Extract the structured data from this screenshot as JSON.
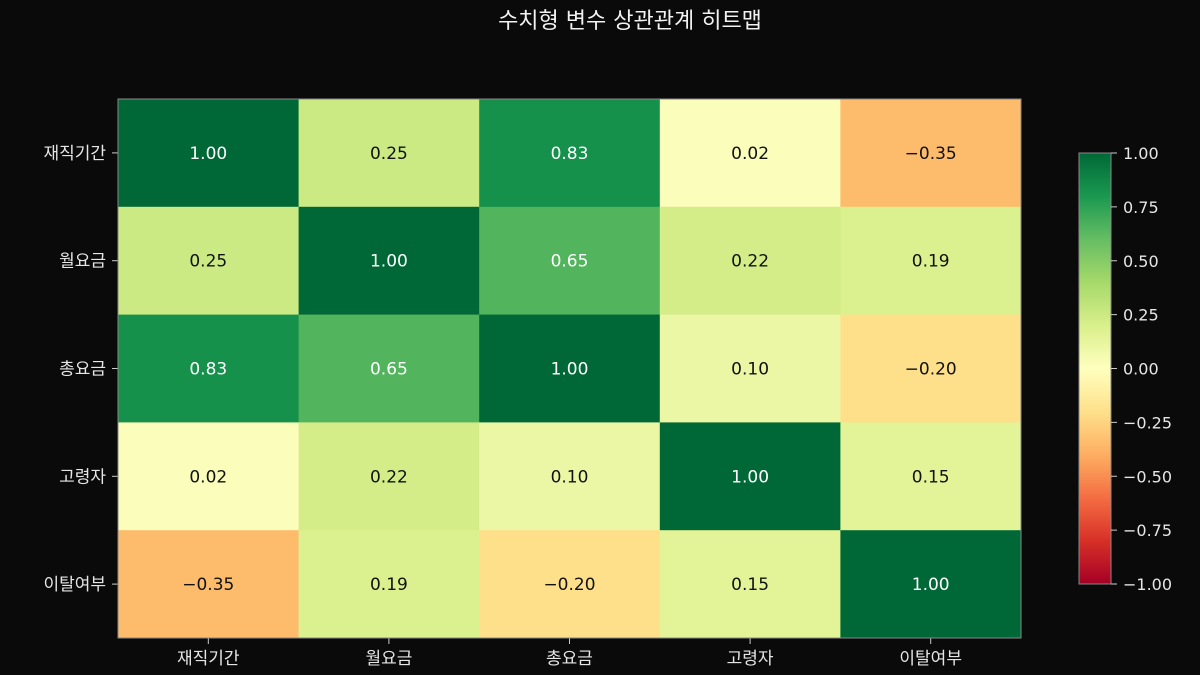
{
  "chart_data": {
    "type": "heatmap",
    "title": "수치형 변수 상관관계 히트맵",
    "rows": [
      "재직기간",
      "월요금",
      "총요금",
      "고령자",
      "이탈여부"
    ],
    "cols": [
      "재직기간",
      "월요금",
      "총요금",
      "고령자",
      "이탈여부"
    ],
    "values": [
      [
        1.0,
        0.25,
        0.83,
        0.02,
        -0.35
      ],
      [
        0.25,
        1.0,
        0.65,
        0.22,
        0.19
      ],
      [
        0.83,
        0.65,
        1.0,
        0.1,
        -0.2
      ],
      [
        0.02,
        0.22,
        0.1,
        1.0,
        0.15
      ],
      [
        -0.35,
        0.19,
        -0.2,
        0.15,
        1.0
      ]
    ],
    "value_labels": [
      [
        "1.00",
        "0.25",
        "0.83",
        "0.02",
        "−0.35"
      ],
      [
        "0.25",
        "1.00",
        "0.65",
        "0.22",
        "0.19"
      ],
      [
        "0.83",
        "0.65",
        "1.00",
        "0.10",
        "−0.20"
      ],
      [
        "0.02",
        "0.22",
        "0.10",
        "1.00",
        "0.15"
      ],
      [
        "−0.35",
        "0.19",
        "−0.20",
        "0.15",
        "1.00"
      ]
    ],
    "vmin": -1.0,
    "vmax": 1.0,
    "colormap": "RdYlGn",
    "colorbar_ticks": [
      1.0,
      0.75,
      0.5,
      0.25,
      0.0,
      -0.25,
      -0.5,
      -0.75,
      -1.0
    ],
    "colorbar_tick_labels": [
      "1.00",
      "0.75",
      "0.50",
      "0.25",
      "0.00",
      "−0.25",
      "−0.50",
      "−0.75",
      "−1.00"
    ],
    "legend": "colorbar-right",
    "grid": false
  }
}
